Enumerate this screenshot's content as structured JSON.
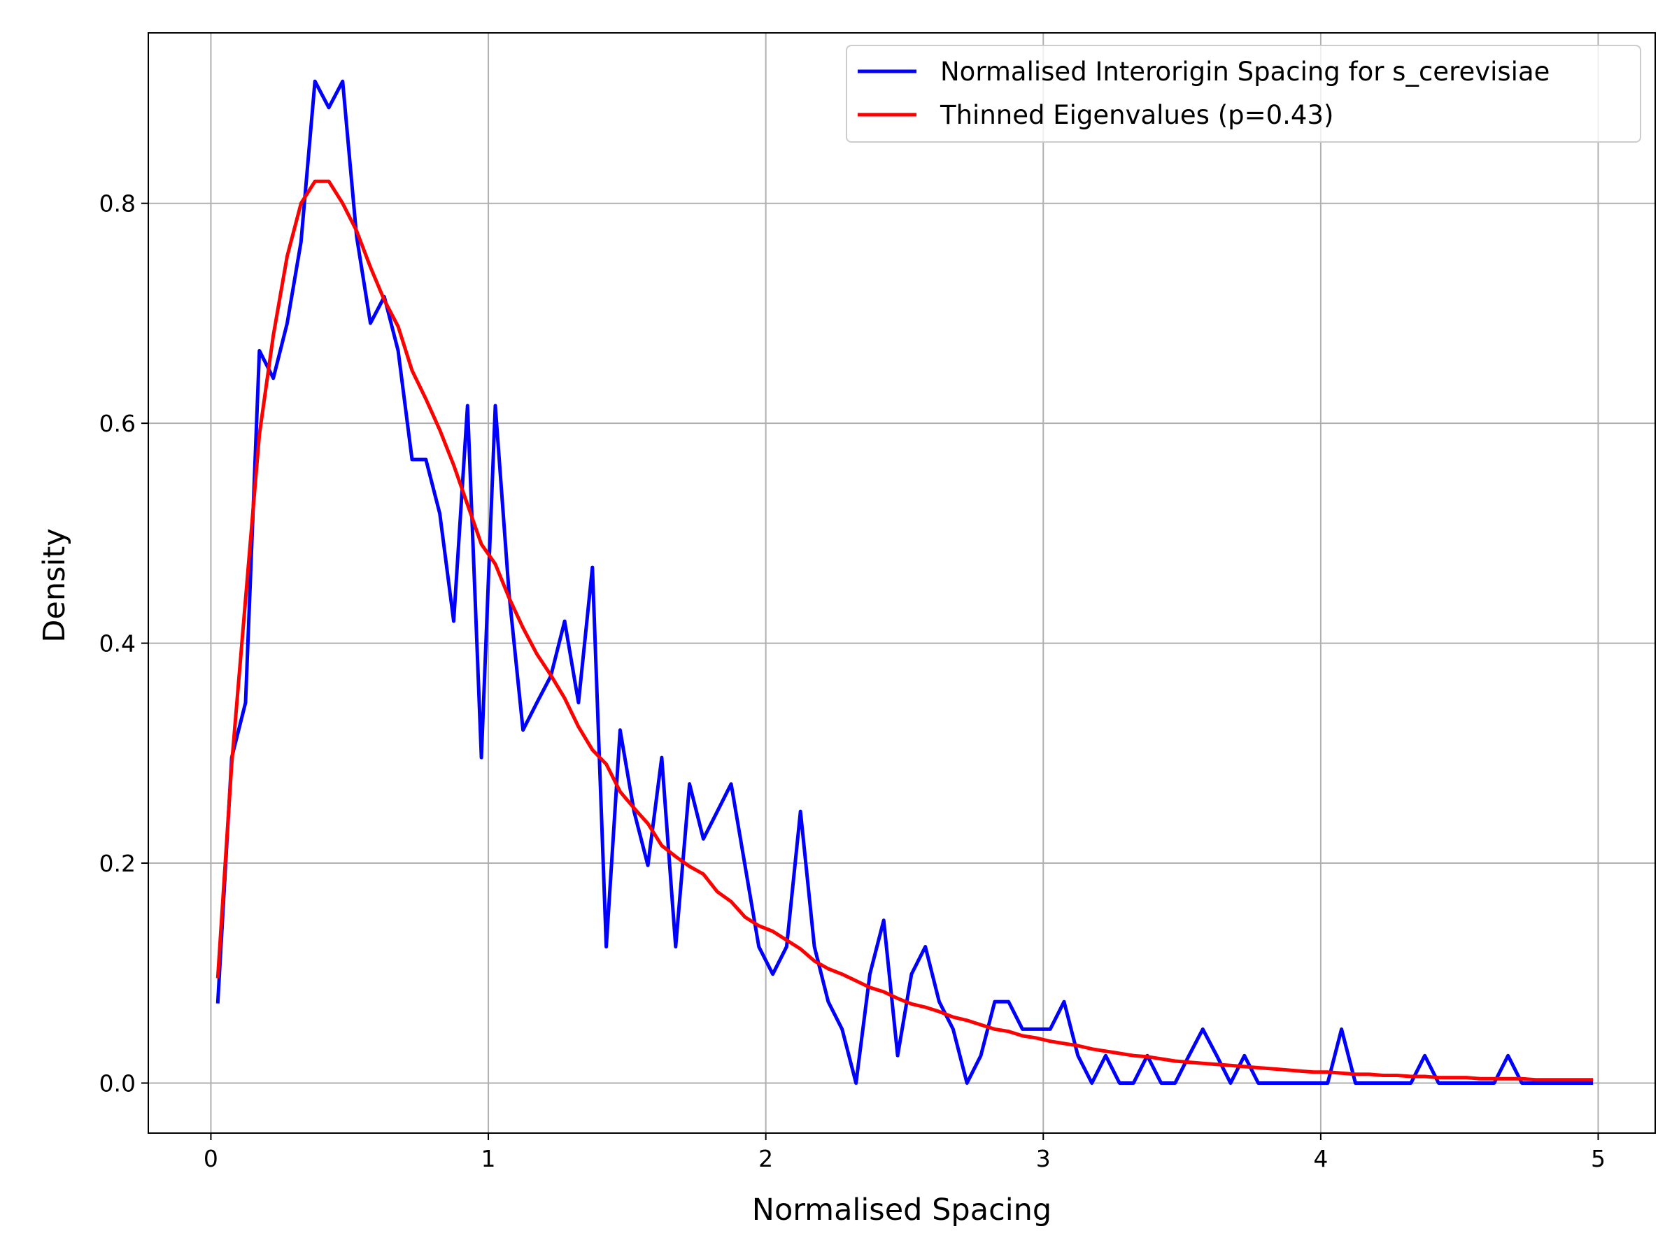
{
  "chart_data": {
    "type": "line",
    "xlabel": "Normalised Spacing",
    "ylabel": "Density",
    "xlim": [
      -0.2255,
      5.2055
    ],
    "ylim": [
      -0.0455,
      0.955
    ],
    "xticks": [
      0,
      1,
      2,
      3,
      4,
      5
    ],
    "xtick_labels": [
      "0",
      "1",
      "2",
      "3",
      "4",
      "5"
    ],
    "yticks": [
      0.0,
      0.2,
      0.4,
      0.6,
      0.8
    ],
    "ytick_labels": [
      "0.0",
      "0.2",
      "0.4",
      "0.6",
      "0.8"
    ],
    "grid": true,
    "legend_position": "top-right",
    "series": [
      {
        "name": "Normalised Interorigin Spacing for s_cerevisiae",
        "color": "#0000ff",
        "x": [
          0.025,
          0.075,
          0.125,
          0.175,
          0.225,
          0.275,
          0.325,
          0.375,
          0.425,
          0.475,
          0.525,
          0.575,
          0.625,
          0.675,
          0.725,
          0.775,
          0.825,
          0.875,
          0.925,
          0.975,
          1.025,
          1.075,
          1.125,
          1.175,
          1.225,
          1.275,
          1.325,
          1.375,
          1.425,
          1.475,
          1.525,
          1.575,
          1.625,
          1.675,
          1.725,
          1.775,
          1.825,
          1.875,
          1.925,
          1.975,
          2.025,
          2.075,
          2.125,
          2.175,
          2.225,
          2.275,
          2.325,
          2.375,
          2.425,
          2.475,
          2.525,
          2.575,
          2.625,
          2.675,
          2.725,
          2.775,
          2.825,
          2.875,
          2.925,
          2.975,
          3.025,
          3.075,
          3.125,
          3.175,
          3.225,
          3.275,
          3.325,
          3.375,
          3.425,
          3.475,
          3.525,
          3.575,
          3.625,
          3.675,
          3.725,
          3.775,
          3.825,
          3.875,
          3.925,
          3.975,
          4.025,
          4.075,
          4.125,
          4.175,
          4.225,
          4.275,
          4.325,
          4.375,
          4.425,
          4.475,
          4.525,
          4.575,
          4.625,
          4.675,
          4.725,
          4.775,
          4.825,
          4.875,
          4.925,
          4.975
        ],
        "y": [
          0.074,
          0.296,
          0.346,
          0.666,
          0.641,
          0.691,
          0.765,
          0.911,
          0.887,
          0.911,
          0.77,
          0.691,
          0.715,
          0.666,
          0.567,
          0.567,
          0.518,
          0.42,
          0.616,
          0.296,
          0.616,
          0.444,
          0.321,
          0.346,
          0.37,
          0.42,
          0.346,
          0.469,
          0.124,
          0.321,
          0.247,
          0.198,
          0.296,
          0.124,
          0.272,
          0.222,
          0.247,
          0.272,
          0.198,
          0.124,
          0.099,
          0.124,
          0.247,
          0.124,
          0.074,
          0.049,
          0.0,
          0.099,
          0.148,
          0.025,
          0.099,
          0.124,
          0.074,
          0.049,
          0.0,
          0.025,
          0.074,
          0.074,
          0.049,
          0.049,
          0.049,
          0.074,
          0.025,
          0.0,
          0.025,
          0.0,
          0.0,
          0.025,
          0.0,
          0.0,
          0.025,
          0.049,
          0.025,
          0.0,
          0.025,
          0.0,
          0.0,
          0.0,
          0.0,
          0.0,
          0.0,
          0.049,
          0.0,
          0.0,
          0.0,
          0.0,
          0.0,
          0.025,
          0.0,
          0.0,
          0.0,
          0.0,
          0.0,
          0.025,
          0.0,
          0.0,
          0.0,
          0.0,
          0.0,
          0.0
        ]
      },
      {
        "name": "Thinned Eigenvalues (p=0.43)",
        "color": "#ff0000",
        "x": [
          0.025,
          0.075,
          0.125,
          0.175,
          0.225,
          0.275,
          0.325,
          0.375,
          0.425,
          0.475,
          0.525,
          0.575,
          0.625,
          0.675,
          0.725,
          0.775,
          0.825,
          0.875,
          0.925,
          0.975,
          1.025,
          1.075,
          1.125,
          1.175,
          1.225,
          1.275,
          1.325,
          1.375,
          1.425,
          1.475,
          1.525,
          1.575,
          1.625,
          1.675,
          1.725,
          1.775,
          1.825,
          1.875,
          1.925,
          1.975,
          2.025,
          2.075,
          2.125,
          2.175,
          2.225,
          2.275,
          2.325,
          2.375,
          2.425,
          2.475,
          2.525,
          2.575,
          2.625,
          2.675,
          2.725,
          2.775,
          2.825,
          2.875,
          2.925,
          2.975,
          3.025,
          3.075,
          3.125,
          3.175,
          3.225,
          3.275,
          3.325,
          3.375,
          3.425,
          3.475,
          3.525,
          3.575,
          3.625,
          3.675,
          3.725,
          3.775,
          3.825,
          3.875,
          3.925,
          3.975,
          4.025,
          4.075,
          4.125,
          4.175,
          4.225,
          4.275,
          4.325,
          4.375,
          4.425,
          4.475,
          4.525,
          4.575,
          4.625,
          4.675,
          4.725,
          4.775,
          4.825,
          4.875,
          4.925,
          4.975
        ],
        "y": [
          0.097,
          0.29,
          0.44,
          0.59,
          0.68,
          0.752,
          0.8,
          0.82,
          0.82,
          0.8,
          0.775,
          0.742,
          0.712,
          0.688,
          0.648,
          0.622,
          0.594,
          0.562,
          0.526,
          0.49,
          0.472,
          0.441,
          0.414,
          0.39,
          0.371,
          0.35,
          0.324,
          0.303,
          0.29,
          0.265,
          0.25,
          0.236,
          0.216,
          0.206,
          0.197,
          0.19,
          0.174,
          0.165,
          0.151,
          0.143,
          0.138,
          0.13,
          0.122,
          0.111,
          0.104,
          0.099,
          0.093,
          0.087,
          0.083,
          0.077,
          0.072,
          0.069,
          0.065,
          0.06,
          0.057,
          0.053,
          0.049,
          0.047,
          0.043,
          0.041,
          0.038,
          0.036,
          0.034,
          0.031,
          0.029,
          0.027,
          0.025,
          0.024,
          0.022,
          0.02,
          0.019,
          0.018,
          0.017,
          0.016,
          0.015,
          0.014,
          0.013,
          0.012,
          0.011,
          0.01,
          0.01,
          0.009,
          0.008,
          0.008,
          0.007,
          0.007,
          0.006,
          0.006,
          0.005,
          0.005,
          0.005,
          0.004,
          0.004,
          0.004,
          0.004,
          0.003,
          0.003,
          0.003,
          0.003,
          0.003
        ]
      }
    ]
  }
}
